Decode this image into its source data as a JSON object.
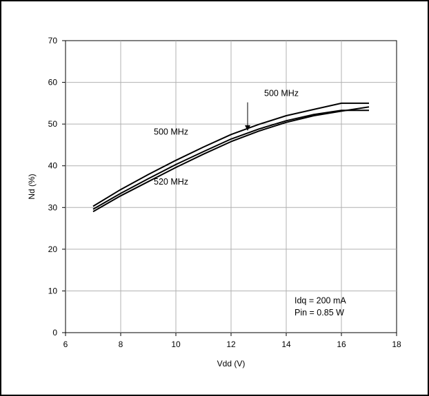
{
  "chart_data": {
    "type": "line",
    "title": "",
    "xlabel": "Vdd (V)",
    "ylabel": "Nd (%)",
    "xlim": [
      6,
      18
    ],
    "ylim": [
      0,
      70
    ],
    "xticks": [
      6,
      8,
      10,
      12,
      14,
      16,
      18
    ],
    "yticks": [
      0,
      10,
      20,
      30,
      40,
      50,
      60,
      70
    ],
    "grid": true,
    "legend": "none",
    "line_color": "#000000",
    "series": [
      {
        "x": [
          7,
          8,
          9,
          10,
          11,
          12,
          13,
          14,
          15,
          16,
          17
        ],
        "values": [
          30.3,
          34.3,
          37.9,
          41.3,
          44.5,
          47.5,
          49.9,
          52.0,
          53.5,
          55.0,
          55.0
        ]
      },
      {
        "x": [
          7,
          8,
          9,
          10,
          11,
          12,
          13,
          14,
          15,
          16,
          17
        ],
        "values": [
          29.6,
          33.4,
          36.9,
          40.3,
          43.4,
          46.4,
          48.8,
          50.8,
          52.3,
          53.3,
          53.3
        ]
      },
      {
        "x": [
          7,
          8,
          9,
          10,
          11,
          12,
          13,
          14,
          15,
          16,
          17
        ],
        "values": [
          29.0,
          32.8,
          36.2,
          39.6,
          42.8,
          45.8,
          48.3,
          50.4,
          52.0,
          53.1,
          54.1
        ]
      }
    ],
    "annotations": [
      {
        "text": "500 MHz",
        "x": 13.2,
        "y": 56.7
      },
      {
        "text": "500 MHz",
        "x": 9.2,
        "y": 47.5
      },
      {
        "text": "520 MHz",
        "x": 9.2,
        "y": 35.5
      },
      {
        "text": "Idq = 200 mA",
        "x": 14.3,
        "y": 7.0
      },
      {
        "text": "Pin = 0.85 W",
        "x": 14.3,
        "y": 4.1
      }
    ],
    "arrow": {
      "from": [
        12.6,
        55.2
      ],
      "to": [
        12.6,
        48.4
      ]
    }
  }
}
